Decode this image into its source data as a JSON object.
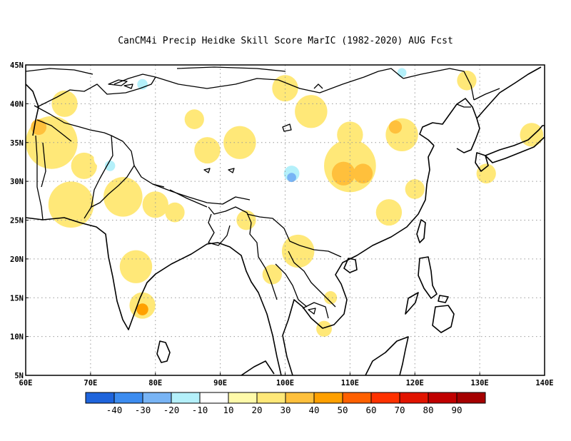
{
  "title": "CanCM4i Precip Heidke Skill Score MarIC (1982-2020) AUG Fcst",
  "map": {
    "lon_range": [
      60,
      140
    ],
    "lat_range": [
      5,
      45
    ],
    "lon_ticks": [
      {
        "value": 60,
        "label": "60E"
      },
      {
        "value": 70,
        "label": "70E"
      },
      {
        "value": 80,
        "label": "80E"
      },
      {
        "value": 90,
        "label": "90E"
      },
      {
        "value": 100,
        "label": "100E"
      },
      {
        "value": 110,
        "label": "110E"
      },
      {
        "value": 120,
        "label": "120E"
      },
      {
        "value": 130,
        "label": "130E"
      },
      {
        "value": 140,
        "label": "140E"
      }
    ],
    "lat_ticks": [
      {
        "value": 5,
        "label": "5N"
      },
      {
        "value": 10,
        "label": "10N"
      },
      {
        "value": 15,
        "label": "15N"
      },
      {
        "value": 20,
        "label": "20N"
      },
      {
        "value": 25,
        "label": "25N"
      },
      {
        "value": 30,
        "label": "30N"
      },
      {
        "value": 35,
        "label": "35N"
      },
      {
        "value": 40,
        "label": "40N"
      },
      {
        "value": 45,
        "label": "45N"
      }
    ],
    "grid": "dotted"
  },
  "colorbar": {
    "colors": [
      "#1e64dc",
      "#3c8cf0",
      "#78b4f5",
      "#b4f0fa",
      "#ffffff",
      "#fffaaa",
      "#ffe878",
      "#ffc03c",
      "#ffa000",
      "#ff6000",
      "#ff3200",
      "#e11400",
      "#c00000",
      "#a50000"
    ],
    "labels": [
      "-40",
      "-30",
      "-20",
      "-10",
      "10",
      "20",
      "30",
      "40",
      "50",
      "60",
      "70",
      "80",
      "90"
    ]
  },
  "chart_data": {
    "type": "heatmap",
    "title": "CanCM4i Precip Heidke Skill Score MarIC (1982-2020) AUG Fcst",
    "xlim": [
      60,
      140
    ],
    "ylim": [
      5,
      45
    ],
    "levels": [
      -40,
      -30,
      -20,
      -10,
      10,
      20,
      30,
      40,
      50,
      60,
      70,
      80,
      90
    ],
    "features": [
      {
        "lon": 64,
        "lat": 35,
        "r": 4,
        "value": 20
      },
      {
        "lon": 62,
        "lat": 37,
        "r": 1.2,
        "value": 30
      },
      {
        "lon": 67,
        "lat": 27,
        "r": 3.5,
        "value": 20
      },
      {
        "lon": 69,
        "lat": 32,
        "r": 2,
        "value": 20
      },
      {
        "lon": 75,
        "lat": 28,
        "r": 3,
        "value": 20
      },
      {
        "lon": 80,
        "lat": 27,
        "r": 2,
        "value": 20
      },
      {
        "lon": 66,
        "lat": 40,
        "r": 2,
        "value": 20
      },
      {
        "lon": 77,
        "lat": 19,
        "r": 2.5,
        "value": 20
      },
      {
        "lon": 78,
        "lat": 14,
        "r": 2,
        "value": 20
      },
      {
        "lon": 78,
        "lat": 13.5,
        "r": 0.9,
        "value": 40
      },
      {
        "lon": 83,
        "lat": 26,
        "r": 1.5,
        "value": 20
      },
      {
        "lon": 93,
        "lat": 35,
        "r": 2.5,
        "value": 20
      },
      {
        "lon": 88,
        "lat": 34,
        "r": 2,
        "value": 20
      },
      {
        "lon": 86,
        "lat": 38,
        "r": 1.5,
        "value": 20
      },
      {
        "lon": 100,
        "lat": 42,
        "r": 2,
        "value": 20
      },
      {
        "lon": 104,
        "lat": 39,
        "r": 2.5,
        "value": 20
      },
      {
        "lon": 110,
        "lat": 32,
        "r": 4,
        "value": 20
      },
      {
        "lon": 109,
        "lat": 31,
        "r": 1.8,
        "value": 30
      },
      {
        "lon": 112,
        "lat": 31,
        "r": 1.5,
        "value": 30
      },
      {
        "lon": 118,
        "lat": 36,
        "r": 2.5,
        "value": 20
      },
      {
        "lon": 117,
        "lat": 37,
        "r": 1,
        "value": 30
      },
      {
        "lon": 110,
        "lat": 36,
        "r": 2,
        "value": 20
      },
      {
        "lon": 116,
        "lat": 26,
        "r": 2,
        "value": 20
      },
      {
        "lon": 120,
        "lat": 29,
        "r": 1.5,
        "value": 20
      },
      {
        "lon": 102,
        "lat": 21,
        "r": 2.5,
        "value": 20
      },
      {
        "lon": 98,
        "lat": 18,
        "r": 1.5,
        "value": 20
      },
      {
        "lon": 106,
        "lat": 11,
        "r": 1.2,
        "value": 20
      },
      {
        "lon": 107,
        "lat": 15,
        "r": 1,
        "value": 20
      },
      {
        "lon": 94,
        "lat": 25,
        "r": 1.5,
        "value": 20
      },
      {
        "lon": 131,
        "lat": 31,
        "r": 1.5,
        "value": 20
      },
      {
        "lon": 138,
        "lat": 36,
        "r": 1.8,
        "value": 20
      },
      {
        "lon": 128,
        "lat": 43,
        "r": 1.5,
        "value": 20
      },
      {
        "lon": 72,
        "lat": 33,
        "r": 1.5,
        "value": -10
      },
      {
        "lon": 73,
        "lat": 32,
        "r": 0.8,
        "value": -20
      },
      {
        "lon": 76,
        "lat": 41,
        "r": 2,
        "value": -10
      },
      {
        "lon": 78,
        "lat": 42.5,
        "r": 0.8,
        "value": -20
      },
      {
        "lon": 83,
        "lat": 43,
        "r": 1.2,
        "value": -10
      },
      {
        "lon": 101,
        "lat": 30,
        "r": 3,
        "value": -10
      },
      {
        "lon": 101,
        "lat": 31,
        "r": 1.2,
        "value": -20
      },
      {
        "lon": 101,
        "lat": 30.5,
        "r": 0.7,
        "value": -30
      },
      {
        "lon": 96,
        "lat": 28,
        "r": 2,
        "value": -10
      },
      {
        "lon": 93,
        "lat": 22,
        "r": 1.5,
        "value": -10
      },
      {
        "lon": 118,
        "lat": 42,
        "r": 2.5,
        "value": -10
      },
      {
        "lon": 118,
        "lat": 44,
        "r": 0.7,
        "value": -20
      },
      {
        "lon": 92,
        "lat": 43,
        "r": 1.5,
        "value": -10
      },
      {
        "lon": 133,
        "lat": 44,
        "r": 1.3,
        "value": -10
      },
      {
        "lon": 76,
        "lat": 37,
        "r": 1.2,
        "value": -10
      }
    ]
  }
}
